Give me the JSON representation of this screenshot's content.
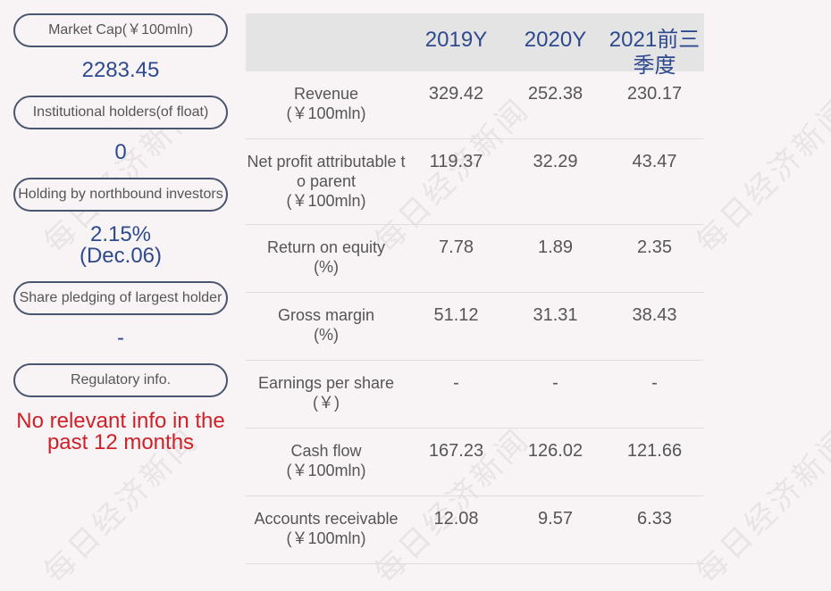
{
  "watermark_text": "每日经济新闻",
  "left_panel": {
    "market_cap_label": "Market Cap(￥100mln)",
    "market_cap_value": "2283.45",
    "institutional_label": "Institutional holders(of float)",
    "institutional_value": "0",
    "northbound_label": "Holding by northbound investors",
    "northbound_value_line1": "2.15%",
    "northbound_value_line2": "(Dec.06)",
    "pledging_label": "Share pledging of largest holder",
    "pledging_value": "-",
    "regulatory_label": "Regulatory info.",
    "regulatory_value_line1": "No relevant info in the",
    "regulatory_value_line2": "past 12 months"
  },
  "table": {
    "columns": [
      "2019Y",
      "2020Y",
      "2021前三\n季度"
    ],
    "rows": [
      {
        "label_line1": "Revenue",
        "label_line2": "(￥100mln)",
        "values": [
          "329.42",
          "252.38",
          "230.17"
        ]
      },
      {
        "label_line1": "Net profit attributable t",
        "label_line2": "o parent",
        "label_line3": "(￥100mln)",
        "values": [
          "119.37",
          "32.29",
          "43.47"
        ]
      },
      {
        "label_line1": "Return on equity",
        "label_line2": "(%)",
        "values": [
          "7.78",
          "1.89",
          "2.35"
        ]
      },
      {
        "label_line1": "Gross margin",
        "label_line2": "(%)",
        "values": [
          "51.12",
          "31.31",
          "38.43"
        ]
      },
      {
        "label_line1": "Earnings per share",
        "label_line2": "(￥)",
        "values": [
          "-",
          "-",
          "-"
        ]
      },
      {
        "label_line1": "Cash flow",
        "label_line2": "(￥100mln)",
        "values": [
          "167.23",
          "126.02",
          "121.66"
        ]
      },
      {
        "label_line1": "Accounts receivable",
        "label_line2": "(￥100mln)",
        "values": [
          "12.08",
          "9.57",
          "6.33"
        ]
      }
    ]
  },
  "colors": {
    "accent_blue": "#2e4a8f",
    "alert_red": "#d02028",
    "header_bg": "#e4e4e4"
  }
}
